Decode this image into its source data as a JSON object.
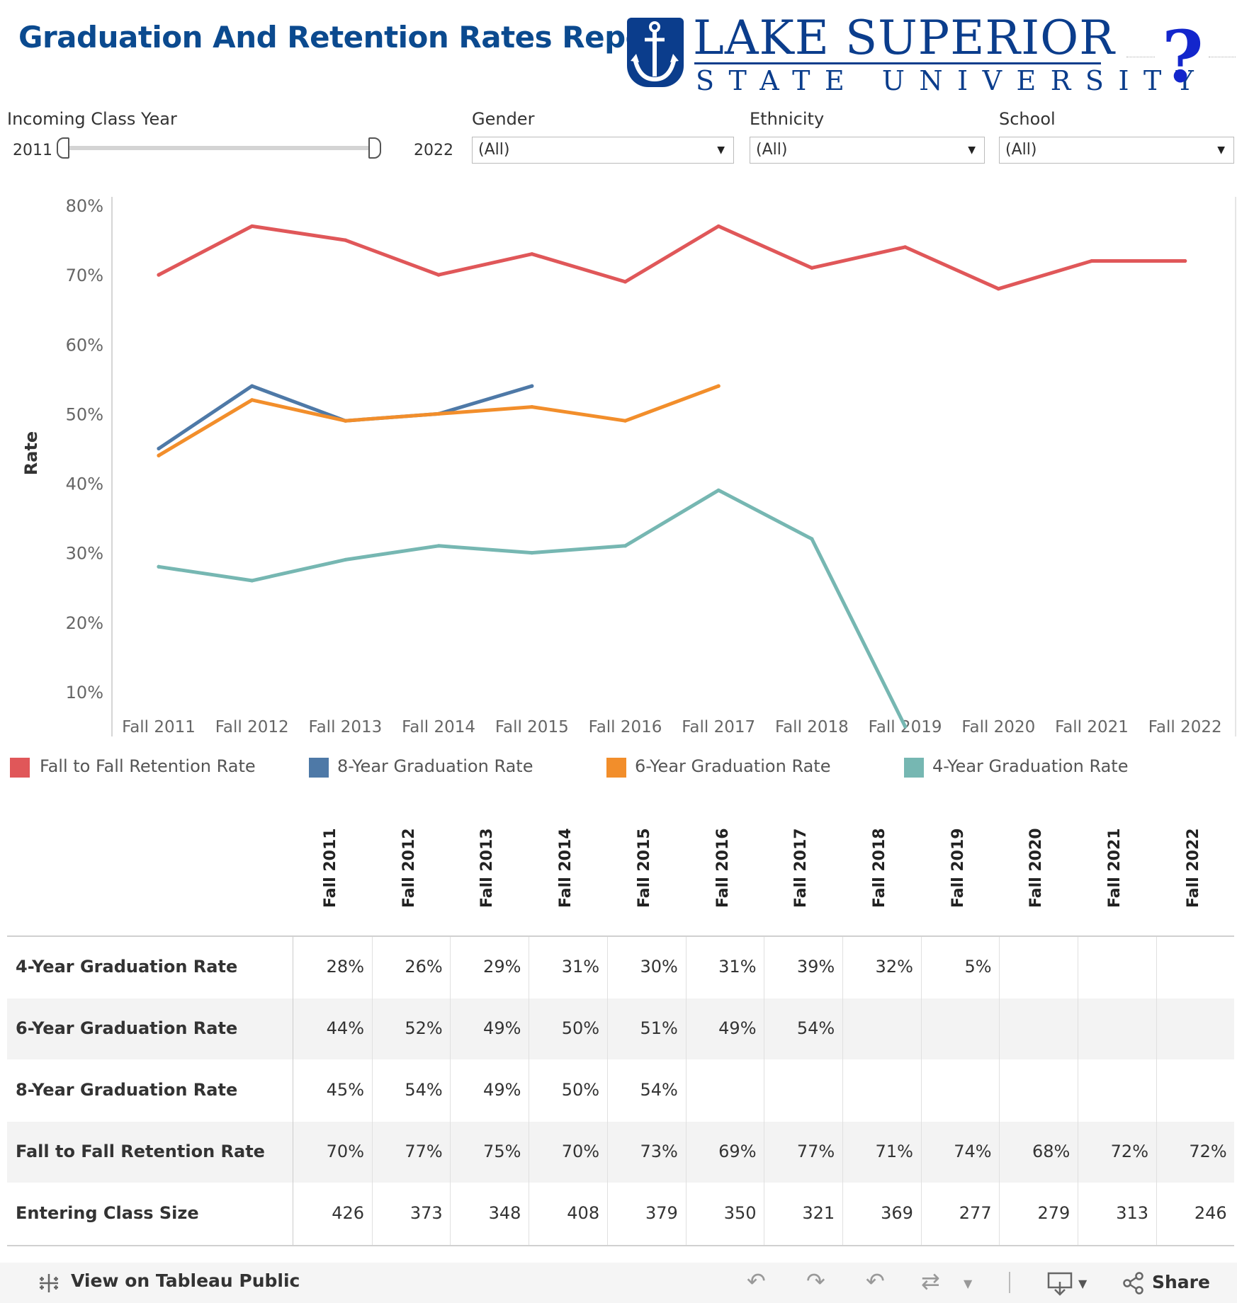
{
  "header": {
    "title": "Graduation And Retention Rates Report",
    "logo_line1": "LAKE SUPERIOR",
    "logo_line2": "STATE UNIVERSITY",
    "help_symbol": "?"
  },
  "filters": {
    "class_year": {
      "label": "Incoming Class Year",
      "min": "2011",
      "max": "2022"
    },
    "gender": {
      "label": "Gender",
      "value": "(All)"
    },
    "ethnicity": {
      "label": "Ethnicity",
      "value": "(All)"
    },
    "school": {
      "label": "School",
      "value": "(All)"
    }
  },
  "chart_data": {
    "type": "line",
    "ylabel": "Rate",
    "xlabel": "",
    "ylim": [
      0,
      80
    ],
    "yticks": [
      "10%",
      "20%",
      "30%",
      "40%",
      "50%",
      "60%",
      "70%",
      "80%"
    ],
    "categories": [
      "Fall 2011",
      "Fall 2012",
      "Fall 2013",
      "Fall 2014",
      "Fall 2015",
      "Fall 2016",
      "Fall 2017",
      "Fall 2018",
      "Fall 2019",
      "Fall 2020",
      "Fall 2021",
      "Fall 2022"
    ],
    "series": [
      {
        "name": "Fall to Fall Retention Rate",
        "color": "#e05759",
        "values": [
          70,
          77,
          75,
          70,
          73,
          69,
          77,
          71,
          74,
          68,
          72,
          72
        ]
      },
      {
        "name": "8-Year Graduation Rate",
        "color": "#4e79a7",
        "values": [
          45,
          54,
          49,
          50,
          54,
          null,
          null,
          null,
          null,
          null,
          null,
          null
        ]
      },
      {
        "name": "6-Year Graduation Rate",
        "color": "#f28e2b",
        "values": [
          44,
          52,
          49,
          50,
          51,
          49,
          54,
          null,
          null,
          null,
          null,
          null
        ]
      },
      {
        "name": "4-Year Graduation Rate",
        "color": "#76b7b2",
        "values": [
          28,
          26,
          29,
          31,
          30,
          31,
          39,
          32,
          5,
          null,
          null,
          null
        ]
      }
    ],
    "grid": false,
    "legend": "bottom"
  },
  "table": {
    "columns": [
      "Fall 2011",
      "Fall 2012",
      "Fall 2013",
      "Fall 2014",
      "Fall 2015",
      "Fall 2016",
      "Fall 2017",
      "Fall 2018",
      "Fall 2019",
      "Fall 2020",
      "Fall 2021",
      "Fall 2022"
    ],
    "rows": [
      {
        "label": "4-Year Graduation Rate",
        "values": [
          "28%",
          "26%",
          "29%",
          "31%",
          "30%",
          "31%",
          "39%",
          "32%",
          "5%",
          "",
          "",
          ""
        ]
      },
      {
        "label": "6-Year Graduation Rate",
        "values": [
          "44%",
          "52%",
          "49%",
          "50%",
          "51%",
          "49%",
          "54%",
          "",
          "",
          "",
          "",
          ""
        ]
      },
      {
        "label": "8-Year Graduation Rate",
        "values": [
          "45%",
          "54%",
          "49%",
          "50%",
          "54%",
          "",
          "",
          "",
          "",
          "",
          "",
          ""
        ]
      },
      {
        "label": "Fall to Fall Retention Rate",
        "values": [
          "70%",
          "77%",
          "75%",
          "70%",
          "73%",
          "69%",
          "77%",
          "71%",
          "74%",
          "68%",
          "72%",
          "72%"
        ]
      },
      {
        "label": "Entering Class Size",
        "values": [
          "426",
          "373",
          "348",
          "408",
          "379",
          "350",
          "321",
          "369",
          "277",
          "279",
          "313",
          "246"
        ]
      }
    ]
  },
  "footer": {
    "view_label": "View on Tableau Public",
    "share_label": "Share"
  }
}
